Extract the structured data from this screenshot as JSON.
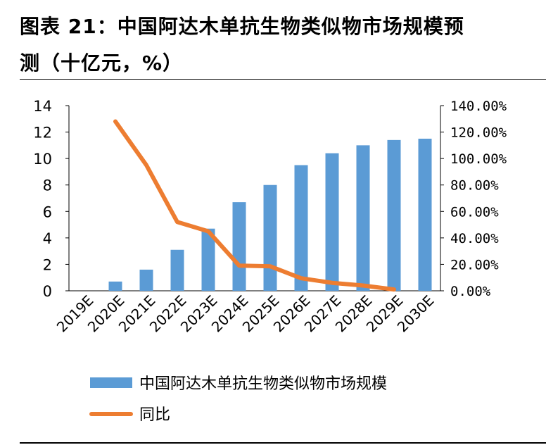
{
  "header": {
    "title_line1": "图表 21：中国阿达木单抗生物类似物市场规模预",
    "title_line2": "测（十亿元，%）"
  },
  "chart_data": {
    "type": "bar",
    "title": "中国阿达木单抗生物类似物市场规模预测（十亿元，%）",
    "categories": [
      "2019E",
      "2020E",
      "2021E",
      "2022E",
      "2023E",
      "2024E",
      "2025E",
      "2026E",
      "2027E",
      "2028E",
      "2029E",
      "2030E"
    ],
    "series": [
      {
        "name": "中国阿达木单抗生物类似物市场规模",
        "kind": "bar",
        "axis": "left",
        "color": "#5B9BD5",
        "values": [
          0,
          0.7,
          1.6,
          3.1,
          4.7,
          6.7,
          8.0,
          9.5,
          10.4,
          11.0,
          11.4,
          11.5
        ]
      },
      {
        "name": "同比",
        "kind": "line",
        "axis": "right",
        "color": "#ED7D31",
        "values": [
          null,
          128,
          95,
          52,
          45,
          19,
          18.5,
          9.5,
          6,
          4,
          1,
          null
        ]
      }
    ],
    "y_left": {
      "min": 0,
      "max": 14,
      "ticks": [
        "0",
        "2",
        "4",
        "6",
        "8",
        "10",
        "12",
        "14"
      ]
    },
    "y_right": {
      "min": 0,
      "max": 140,
      "ticks": [
        "0.00%",
        "20.00%",
        "40.00%",
        "60.00%",
        "80.00%",
        "100.00%",
        "120.00%",
        "140.00%"
      ]
    },
    "legend": {
      "position": "bottom",
      "bar_label": "中国阿达木单抗生物类似物市场规模",
      "line_label": "同比"
    }
  }
}
